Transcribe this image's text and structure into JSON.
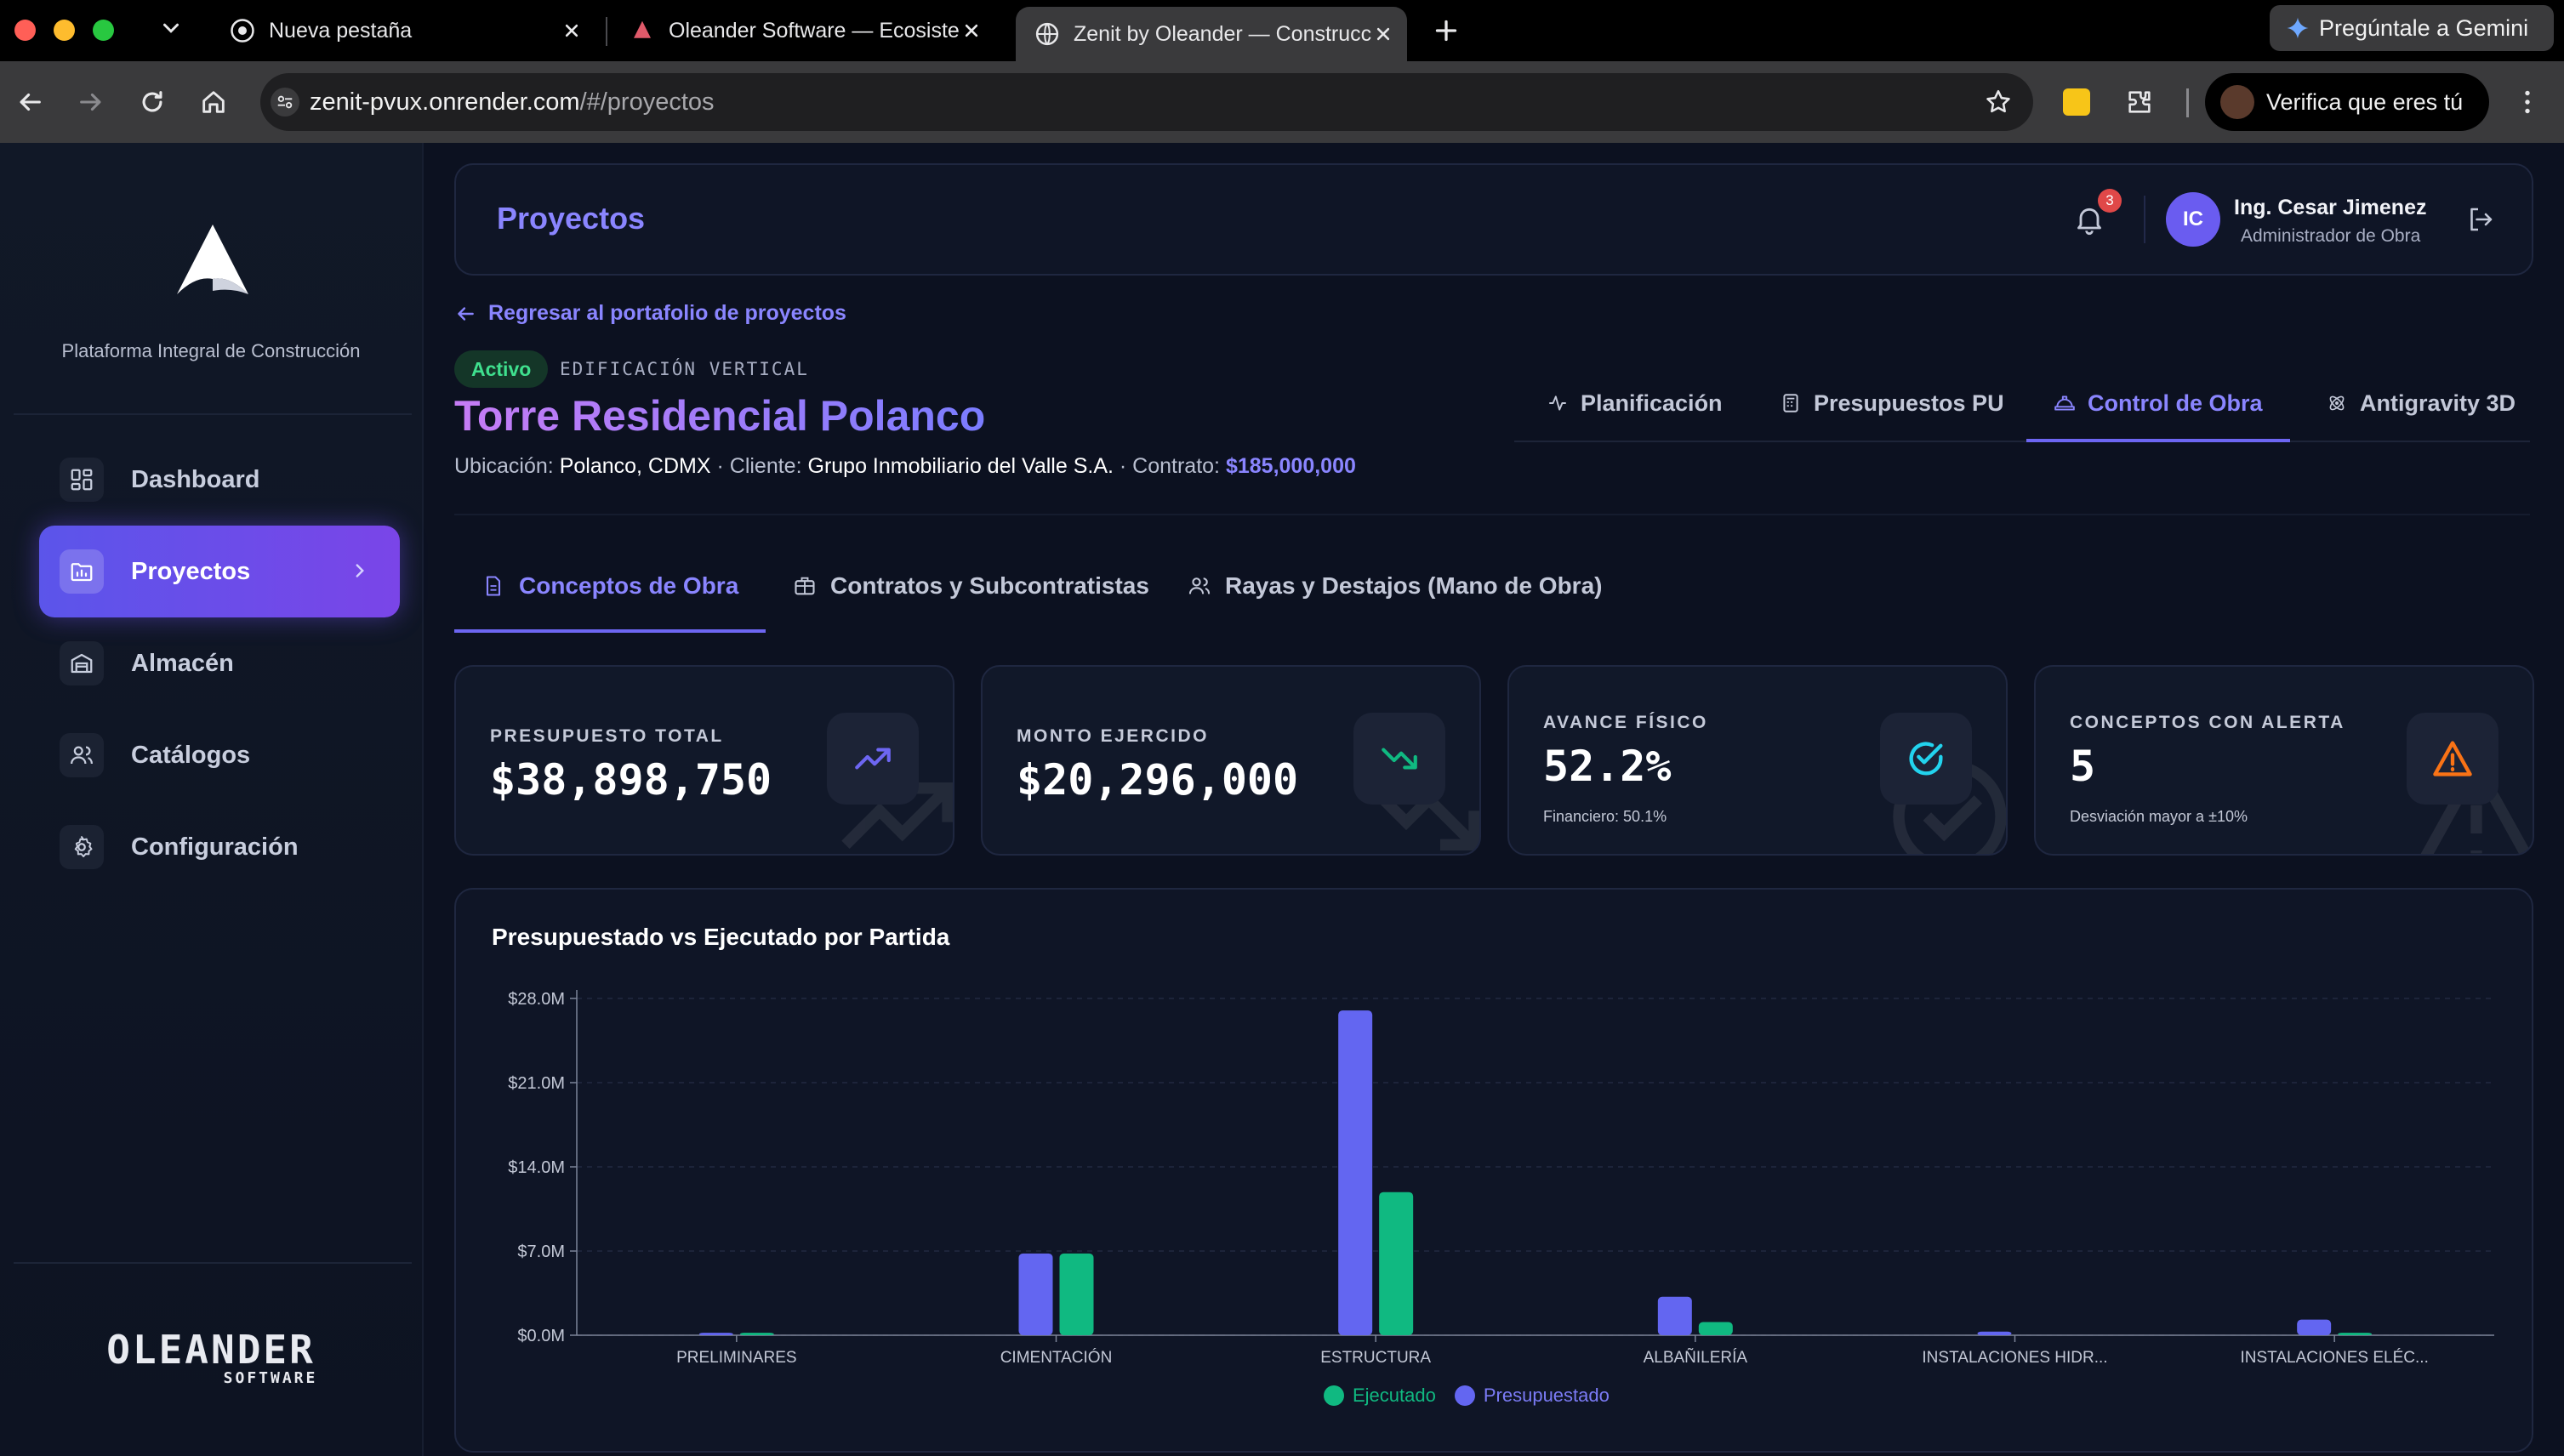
{
  "browser": {
    "tabs": [
      {
        "title": "Nueva pestaña"
      },
      {
        "title": "Oleander Software — Ecosistema"
      },
      {
        "title": "Zenit by Oleander — Construcción"
      }
    ],
    "gemini_label": "Pregúntale a Gemini",
    "url_host": "zenit-pvux.onrender.com",
    "url_path": "/#/proyectos",
    "verify_label": "Verifica que eres tú"
  },
  "sidebar": {
    "tagline": "Plataforma Integral de Construcción",
    "items": [
      {
        "label": "Dashboard"
      },
      {
        "label": "Proyectos"
      },
      {
        "label": "Almacén"
      },
      {
        "label": "Catálogos"
      },
      {
        "label": "Configuración"
      }
    ],
    "brand_main": "OLEANDER",
    "brand_sub": "SOFTWARE"
  },
  "header": {
    "title": "Proyectos",
    "notifications": "3",
    "avatar_initials": "IC",
    "user_name": "Ing. Cesar Jimenez",
    "user_role": "Administrador de Obra"
  },
  "project": {
    "back_label": "Regresar al portafolio de proyectos",
    "status": "Activo",
    "category": "EDIFICACIÓN VERTICAL",
    "name": "Torre Residencial Polanco",
    "location_label": "Ubicación:",
    "location": "Polanco, CDMX",
    "client_label": "· Cliente:",
    "client": "Grupo Inmobiliario del Valle S.A.",
    "contract_label": "· Contrato:",
    "contract": "$185,000,000"
  },
  "module_tabs": [
    {
      "label": "Planificación"
    },
    {
      "label": "Presupuestos PU"
    },
    {
      "label": "Control de Obra"
    },
    {
      "label": "Antigravity 3D"
    }
  ],
  "sub_tabs": [
    {
      "label": "Conceptos de Obra"
    },
    {
      "label": "Contratos y Subcontratistas"
    },
    {
      "label": "Rayas y Destajos (Mano de Obra)"
    }
  ],
  "stats": [
    {
      "label": "PRESUPUESTO TOTAL",
      "value": "$38,898,750",
      "sub": ""
    },
    {
      "label": "MONTO EJERCIDO",
      "value": "$20,296,000",
      "sub": ""
    },
    {
      "label": "AVANCE FÍSICO",
      "value": "52.2%",
      "sub": "Financiero: 50.1%"
    },
    {
      "label": "CONCEPTOS CON ALERTA",
      "value": "5",
      "sub": "Desviación mayor a ±10%"
    }
  ],
  "colors": {
    "accent": "#6d66f2",
    "presupuestado": "#6366f1",
    "ejecutado": "#10b981",
    "warning": "#f97316",
    "success": "#3fe08e",
    "info": "#22d3ee"
  },
  "chart_data": {
    "type": "bar",
    "title": "Presupuestado vs Ejecutado por Partida",
    "categories": [
      "PRELIMINARES",
      "CIMENTACIÓN",
      "ESTRUCTURA",
      "ALBAÑILERÍA",
      "INSTALACIONES HIDR...",
      "INSTALACIONES ELÉC..."
    ],
    "series": [
      {
        "name": "Presupuestado",
        "values": [
          0.2,
          6.8,
          27.0,
          3.2,
          0.3,
          1.3
        ]
      },
      {
        "name": "Ejecutado",
        "values": [
          0.2,
          6.8,
          11.9,
          1.1,
          0.0,
          0.2
        ]
      }
    ],
    "yticks": [
      "$0.0M",
      "$7.0M",
      "$14.0M",
      "$21.0M",
      "$28.0M"
    ],
    "ylim": [
      0,
      28
    ],
    "legend": [
      "Ejecutado",
      "Presupuestado"
    ],
    "legend_position": "bottom",
    "grid": true
  }
}
